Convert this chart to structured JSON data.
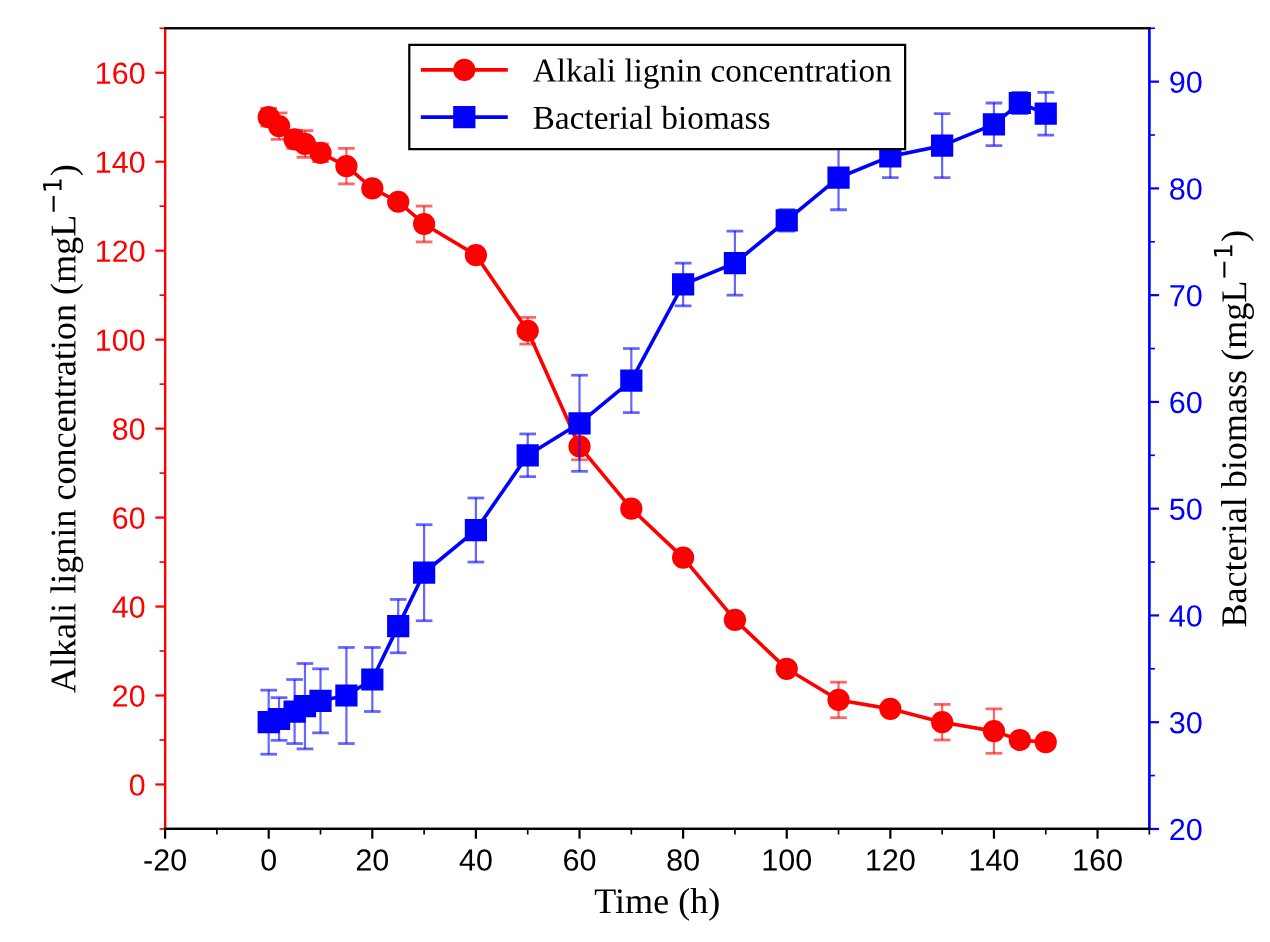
{
  "chart_data": {
    "type": "line",
    "xlabel": "Time (h)",
    "ylabel": "Alkali lignin concentration (mgL$^{−1}$)",
    "y2label": "Bacterial biomass (mgL$^{−1}$)",
    "x": [
      0,
      2,
      5,
      7,
      10,
      15,
      20,
      25,
      30,
      40,
      50,
      60,
      70,
      80,
      90,
      100,
      110,
      120,
      130,
      140,
      145,
      150
    ],
    "series": [
      {
        "name": "Alkali lignin concentration",
        "color": "#ff0000",
        "marker": "circle",
        "values": [
          150,
          148,
          145,
          144,
          142,
          139,
          134,
          131,
          126,
          119,
          102,
          76,
          62,
          51,
          37,
          26,
          19,
          17,
          14,
          12,
          10,
          9.5
        ],
        "errors": [
          2,
          3,
          2,
          3,
          2,
          4,
          1,
          1,
          4,
          1,
          3,
          3,
          1,
          1,
          0.5,
          0.5,
          4,
          1,
          4,
          5,
          1.5,
          1.5
        ]
      },
      {
        "name": "Bacterial biomass",
        "color": "#0000ff",
        "marker": "square",
        "axis": "y2",
        "values": [
          30,
          30.3,
          31,
          31.5,
          32,
          32.5,
          34,
          39,
          44,
          48,
          55,
          58,
          62,
          71,
          73,
          77,
          81,
          83,
          84,
          86,
          88,
          87
        ],
        "errors": [
          3,
          2,
          3,
          4,
          3,
          4.5,
          3,
          2.5,
          4.5,
          3,
          2,
          4.5,
          3,
          2,
          3,
          1,
          3,
          2,
          3,
          2,
          1,
          2
        ]
      }
    ],
    "xlim": [
      -20,
      170
    ],
    "xticks": [
      -20,
      0,
      20,
      40,
      60,
      80,
      100,
      120,
      140,
      160
    ],
    "ylim": [
      -10,
      170
    ],
    "yticks": [
      0,
      20,
      40,
      60,
      80,
      100,
      120,
      140,
      160
    ],
    "y2lim": [
      20,
      95
    ],
    "y2ticks": [
      20,
      30,
      40,
      50,
      60,
      70,
      80,
      90
    ],
    "legend": "top",
    "grid": false,
    "line_style": "solid"
  }
}
